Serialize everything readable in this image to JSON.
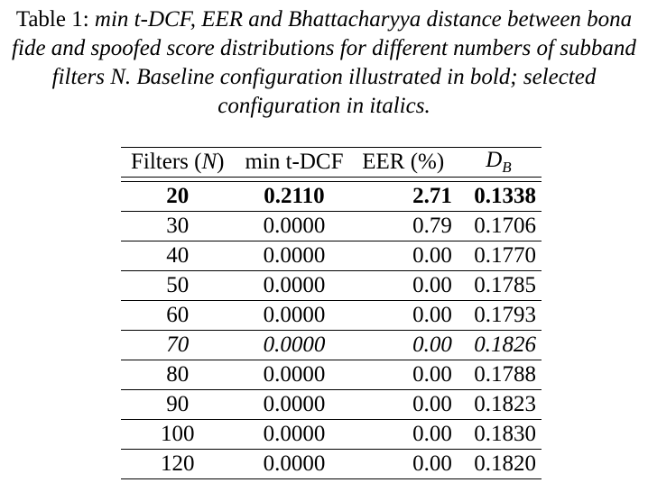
{
  "caption": {
    "label": "Table 1:",
    "text": "min t-DCF, EER and Bhattacharyya distance between bona fide and spoofed score distributions for different numbers of subband filters N. Baseline configuration illustrated in bold; selected configuration in italics."
  },
  "table": {
    "headers": {
      "filters_prefix": "Filters (",
      "filters_symbol": "N",
      "filters_suffix": ")",
      "min_tdcf": "min t-DCF",
      "eer": "EER (%)",
      "db_symbol": "D",
      "db_subscript": "B"
    },
    "rows": [
      {
        "filters": "20",
        "min_tdcf": "0.2110",
        "eer": "2.71",
        "db": "0.1338",
        "style": "bold"
      },
      {
        "filters": "30",
        "min_tdcf": "0.0000",
        "eer": "0.79",
        "db": "0.1706",
        "style": "normal"
      },
      {
        "filters": "40",
        "min_tdcf": "0.0000",
        "eer": "0.00",
        "db": "0.1770",
        "style": "normal"
      },
      {
        "filters": "50",
        "min_tdcf": "0.0000",
        "eer": "0.00",
        "db": "0.1785",
        "style": "normal"
      },
      {
        "filters": "60",
        "min_tdcf": "0.0000",
        "eer": "0.00",
        "db": "0.1793",
        "style": "normal"
      },
      {
        "filters": "70",
        "min_tdcf": "0.0000",
        "eer": "0.00",
        "db": "0.1826",
        "style": "italic"
      },
      {
        "filters": "80",
        "min_tdcf": "0.0000",
        "eer": "0.00",
        "db": "0.1788",
        "style": "normal"
      },
      {
        "filters": "90",
        "min_tdcf": "0.0000",
        "eer": "0.00",
        "db": "0.1823",
        "style": "normal"
      },
      {
        "filters": "100",
        "min_tdcf": "0.0000",
        "eer": "0.00",
        "db": "0.1830",
        "style": "normal"
      },
      {
        "filters": "120",
        "min_tdcf": "0.0000",
        "eer": "0.00",
        "db": "0.1820",
        "style": "normal"
      }
    ]
  }
}
